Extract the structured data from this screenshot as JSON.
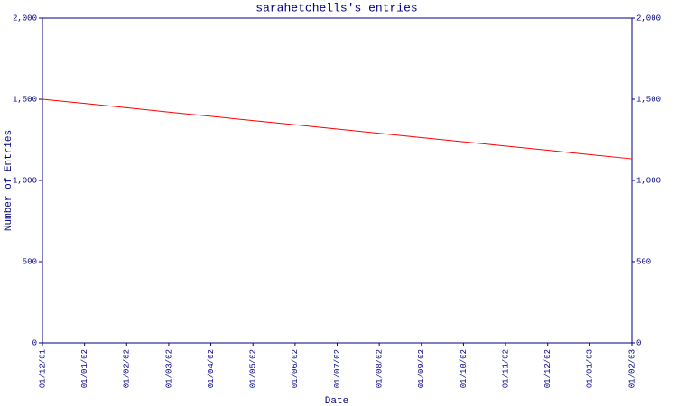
{
  "chart_data": {
    "type": "line",
    "title": "sarahetchells's entries",
    "x_label": "Date",
    "y_label": "Number of Entries",
    "categories": [
      "01/12/01",
      "01/01/02",
      "01/02/02",
      "01/03/02",
      "01/04/02",
      "01/05/02",
      "01/06/02",
      "01/07/02",
      "01/08/02",
      "01/09/02",
      "01/10/02",
      "01/11/02",
      "01/12/02",
      "01/01/03",
      "01/02/03"
    ],
    "series": [
      {
        "name": "Entries",
        "color": "#ff0000",
        "values": [
          1500,
          1474,
          1448,
          1421,
          1395,
          1369,
          1343,
          1317,
          1290,
          1264,
          1238,
          1212,
          1186,
          1159,
          1133
        ]
      }
    ],
    "ylim": [
      0,
      2000
    ],
    "yticks": [
      0,
      500,
      {
        "value": 1000,
        "label": "1,000"
      },
      {
        "value": 1500,
        "label": "1,500"
      },
      {
        "value": 2000,
        "label": "2,000"
      }
    ],
    "y2lim": [
      0,
      2000
    ],
    "y2ticks": [
      0,
      500,
      {
        "value": 1000,
        "label": "1,000"
      },
      {
        "value": 1500,
        "label": "1,500"
      },
      {
        "value": 2000,
        "label": "2,000"
      }
    ],
    "axis_color": "#000080",
    "grid": false
  }
}
